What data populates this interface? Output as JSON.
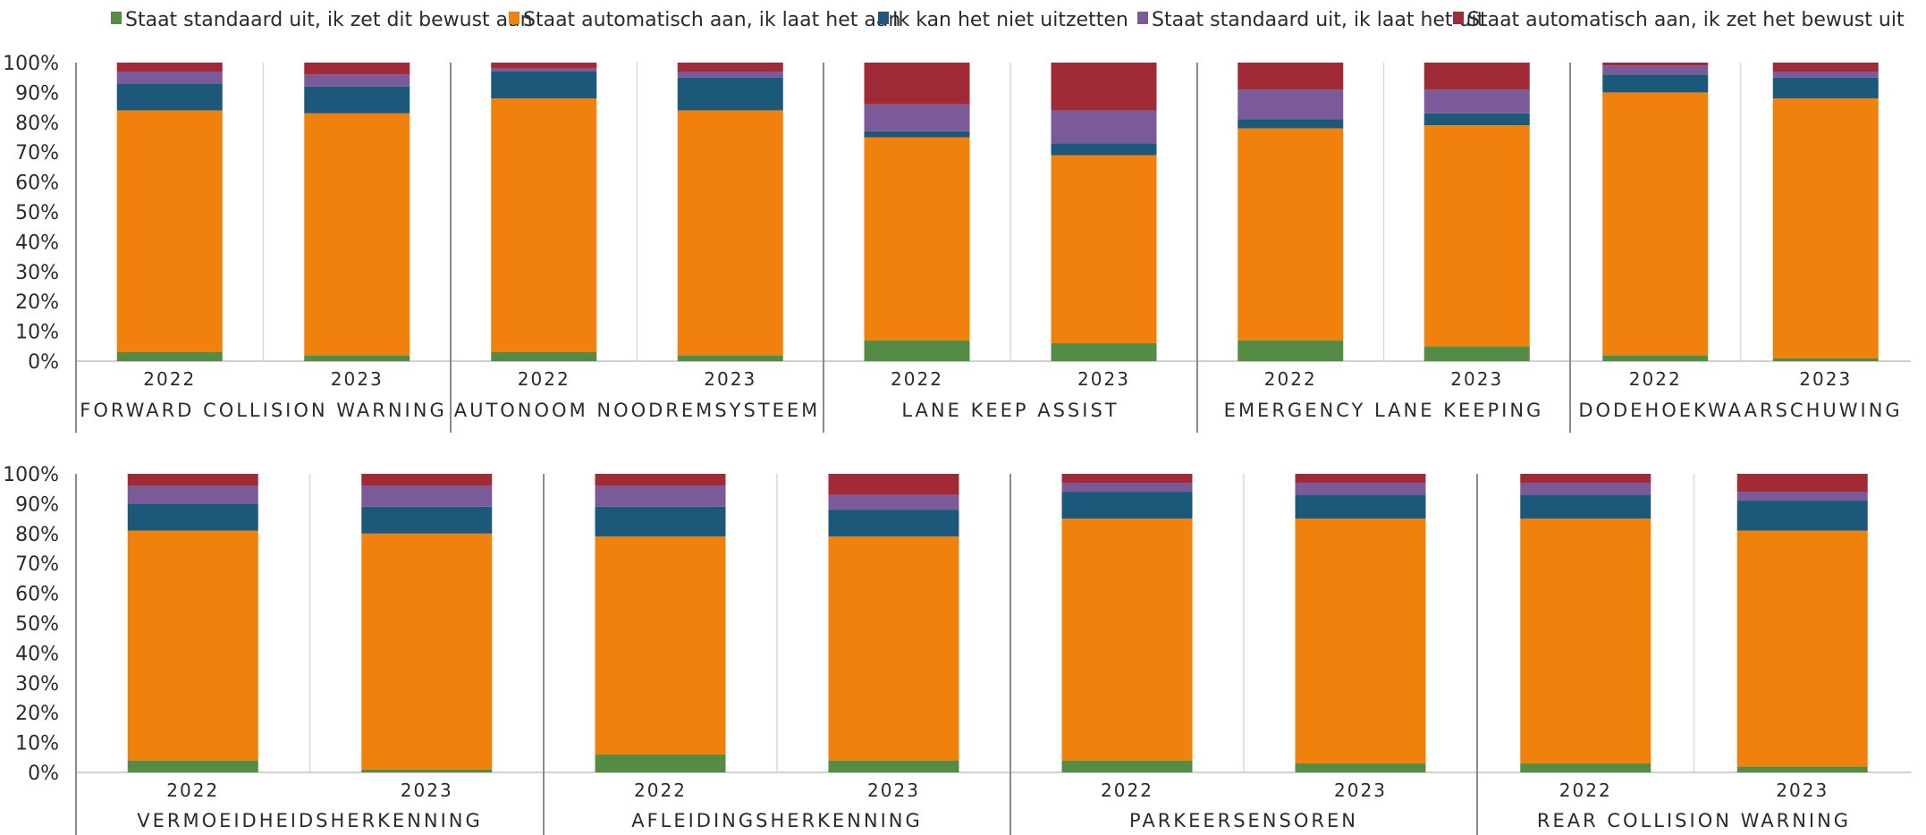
{
  "chart_data": {
    "type": "bar",
    "stacked": true,
    "percent_scale": true,
    "legend": {
      "position": "top",
      "entries": [
        {
          "name": "Staat standaard uit, ik zet dit bewust aan",
          "color": "#548b45"
        },
        {
          "name": "Staat automatisch aan, ik laat het aan",
          "color": "#f0810d"
        },
        {
          "name": "Ik kan het niet uitzetten",
          "color": "#1b587a"
        },
        {
          "name": "Staat standaard uit, ik laat het uit",
          "color": "#7a5a99"
        },
        {
          "name": "Staat automatisch aan, ik zet het bewust uit",
          "color": "#a12a37"
        }
      ]
    },
    "y_ticks": [
      "0%",
      "10%",
      "20%",
      "30%",
      "40%",
      "50%",
      "60%",
      "70%",
      "80%",
      "90%",
      "100%"
    ],
    "ylim": [
      0,
      100
    ],
    "rows": [
      {
        "groups": [
          {
            "name": "FORWARD COLLISION WARNING",
            "bars": [
              {
                "category": "2022",
                "values": [
                  3,
                  81,
                  9,
                  4,
                  3
                ]
              },
              {
                "category": "2023",
                "values": [
                  2,
                  81,
                  9,
                  4,
                  4
                ]
              }
            ]
          },
          {
            "name": "AUTONOOM NOODREMSYSTEEM",
            "bars": [
              {
                "category": "2022",
                "values": [
                  3,
                  85,
                  9,
                  1,
                  2
                ]
              },
              {
                "category": "2023",
                "values": [
                  2,
                  82,
                  11,
                  2,
                  3
                ]
              }
            ]
          },
          {
            "name": "LANE KEEP ASSIST",
            "bars": [
              {
                "category": "2022",
                "values": [
                  7,
                  68,
                  2,
                  9,
                  14
                ]
              },
              {
                "category": "2023",
                "values": [
                  6,
                  63,
                  4,
                  11,
                  16
                ]
              }
            ]
          },
          {
            "name": "EMERGENCY LANE KEEPING",
            "bars": [
              {
                "category": "2022",
                "values": [
                  7,
                  71,
                  3,
                  10,
                  9
                ]
              },
              {
                "category": "2023",
                "values": [
                  5,
                  74,
                  4,
                  8,
                  9
                ]
              }
            ]
          },
          {
            "name": "DODEHOEKWAARSCHUWING",
            "bars": [
              {
                "category": "2022",
                "values": [
                  2,
                  88,
                  6,
                  3,
                  1
                ]
              },
              {
                "category": "2023",
                "values": [
                  1,
                  87,
                  7,
                  2,
                  3
                ]
              }
            ]
          }
        ]
      },
      {
        "groups": [
          {
            "name": "VERMOEIDHEIDSHERKENNING",
            "bars": [
              {
                "category": "2022",
                "values": [
                  4,
                  77,
                  9,
                  6,
                  4
                ]
              },
              {
                "category": "2023",
                "values": [
                  1,
                  79,
                  9,
                  7,
                  4
                ]
              }
            ]
          },
          {
            "name": "AFLEIDINGSHERKENNING",
            "bars": [
              {
                "category": "2022",
                "values": [
                  6,
                  73,
                  10,
                  7,
                  4
                ]
              },
              {
                "category": "2023",
                "values": [
                  4,
                  75,
                  9,
                  5,
                  7
                ]
              }
            ]
          },
          {
            "name": "PARKEERSENSOREN",
            "bars": [
              {
                "category": "2022",
                "values": [
                  4,
                  81,
                  9,
                  3,
                  3
                ]
              },
              {
                "category": "2023",
                "values": [
                  3,
                  82,
                  8,
                  4,
                  3
                ]
              }
            ]
          },
          {
            "name": "REAR COLLISION WARNING",
            "bars": [
              {
                "category": "2022",
                "values": [
                  3,
                  82,
                  8,
                  4,
                  3
                ]
              },
              {
                "category": "2023",
                "values": [
                  2,
                  79,
                  10,
                  3,
                  6
                ]
              }
            ]
          }
        ]
      }
    ]
  }
}
